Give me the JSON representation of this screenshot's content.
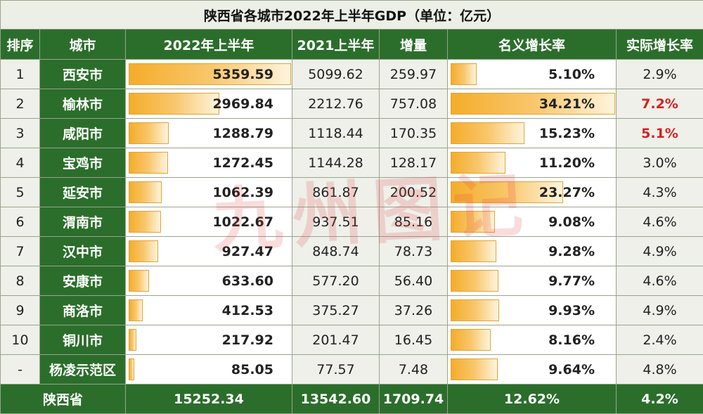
{
  "title": "陕西省各城市2022年上半年GDP（单位：亿元）",
  "headers": [
    "排序",
    "城市",
    "2022年上半年",
    "2021上半年",
    "增量",
    "名义增长率",
    "实际增长率"
  ],
  "rows": [
    {
      "rank": "1",
      "city": "西安市",
      "gdp2022": "5359.59",
      "gdp2021": "5099.62",
      "increase": "259.97",
      "nominal": "5.10%",
      "real": "2.9%",
      "gdp_bar": 1.0,
      "rate_bar": 0.149,
      "real_highlight": false
    },
    {
      "rank": "2",
      "city": "榆林市",
      "gdp2022": "2969.84",
      "gdp2021": "2212.76",
      "increase": "757.08",
      "nominal": "34.21%",
      "real": "7.2%",
      "gdp_bar": 0.554,
      "rate_bar": 1.0,
      "real_highlight": true
    },
    {
      "rank": "3",
      "city": "咸阳市",
      "gdp2022": "1288.79",
      "gdp2021": "1118.44",
      "increase": "170.35",
      "nominal": "15.23%",
      "real": "5.1%",
      "gdp_bar": 0.24,
      "rate_bar": 0.445,
      "real_highlight": true
    },
    {
      "rank": "4",
      "city": "宝鸡市",
      "gdp2022": "1272.45",
      "gdp2021": "1144.28",
      "increase": "128.17",
      "nominal": "11.20%",
      "real": "3.0%",
      "gdp_bar": 0.237,
      "rate_bar": 0.327,
      "real_highlight": false
    },
    {
      "rank": "5",
      "city": "延安市",
      "gdp2022": "1062.39",
      "gdp2021": "861.87",
      "increase": "200.52",
      "nominal": "23.27%",
      "real": "4.3%",
      "gdp_bar": 0.198,
      "rate_bar": 0.68,
      "real_highlight": false
    },
    {
      "rank": "6",
      "city": "渭南市",
      "gdp2022": "1022.67",
      "gdp2021": "937.51",
      "increase": "85.16",
      "nominal": "9.08%",
      "real": "4.6%",
      "gdp_bar": 0.191,
      "rate_bar": 0.265,
      "real_highlight": false
    },
    {
      "rank": "7",
      "city": "汉中市",
      "gdp2022": "927.47",
      "gdp2021": "848.74",
      "increase": "78.73",
      "nominal": "9.28%",
      "real": "4.9%",
      "gdp_bar": 0.173,
      "rate_bar": 0.271,
      "real_highlight": false
    },
    {
      "rank": "8",
      "city": "安康市",
      "gdp2022": "633.60",
      "gdp2021": "577.20",
      "increase": "56.40",
      "nominal": "9.77%",
      "real": "4.6%",
      "gdp_bar": 0.118,
      "rate_bar": 0.286,
      "real_highlight": false
    },
    {
      "rank": "9",
      "city": "商洛市",
      "gdp2022": "412.53",
      "gdp2021": "375.27",
      "increase": "37.26",
      "nominal": "9.93%",
      "real": "4.9%",
      "gdp_bar": 0.077,
      "rate_bar": 0.29,
      "real_highlight": false
    },
    {
      "rank": "10",
      "city": "铜川市",
      "gdp2022": "217.92",
      "gdp2021": "201.47",
      "increase": "16.45",
      "nominal": "8.16%",
      "real": "2.4%",
      "gdp_bar": 0.041,
      "rate_bar": 0.239,
      "real_highlight": false
    },
    {
      "rank": "-",
      "city": "杨凌示范区",
      "gdp2022": "85.05",
      "gdp2021": "77.57",
      "increase": "7.48",
      "nominal": "9.64%",
      "real": "4.8%",
      "gdp_bar": 0.016,
      "rate_bar": 0.282,
      "real_highlight": false
    }
  ],
  "total": {
    "label": "陕西省",
    "gdp2022": "15252.34",
    "gdp2021": "13542.60",
    "increase": "1709.74",
    "nominal": "12.62%",
    "real": "4.2%"
  },
  "watermark": "九州图记",
  "colors": {
    "header_green": "#2b6e2b",
    "bar_orange": "#f4ad2b",
    "highlight_red": "#d42121",
    "cell_bg": "#eef0e9"
  }
}
